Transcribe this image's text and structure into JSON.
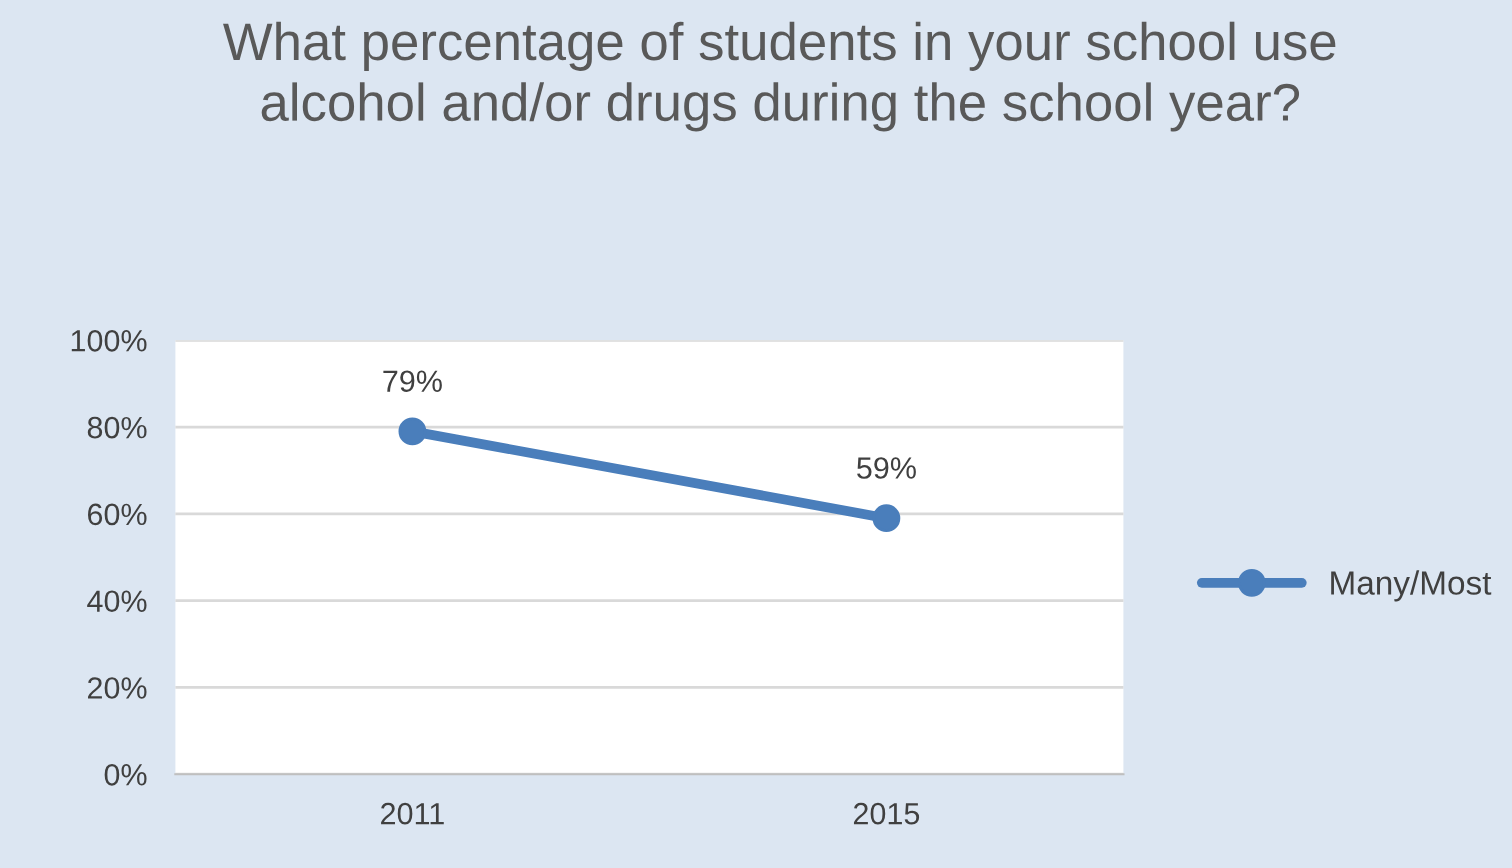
{
  "chart_data": {
    "type": "line",
    "title": "What percentage of students in your school use alcohol and/or drugs during the school year?",
    "categories": [
      "2011",
      "2015"
    ],
    "series": [
      {
        "name": "Many/Most",
        "color": "#4a7ebb",
        "values": [
          79,
          59
        ],
        "value_labels": [
          "79%",
          "59%"
        ]
      }
    ],
    "ylim": [
      0,
      100
    ],
    "yticks": [
      {
        "value": 0,
        "label": "0%"
      },
      {
        "value": 20,
        "label": "20%"
      },
      {
        "value": 40,
        "label": "40%"
      },
      {
        "value": 60,
        "label": "60%"
      },
      {
        "value": 80,
        "label": "80%"
      },
      {
        "value": 100,
        "label": "100%"
      }
    ],
    "grid": "y",
    "legend": "right",
    "marker": "circle",
    "line_style": "solid"
  }
}
